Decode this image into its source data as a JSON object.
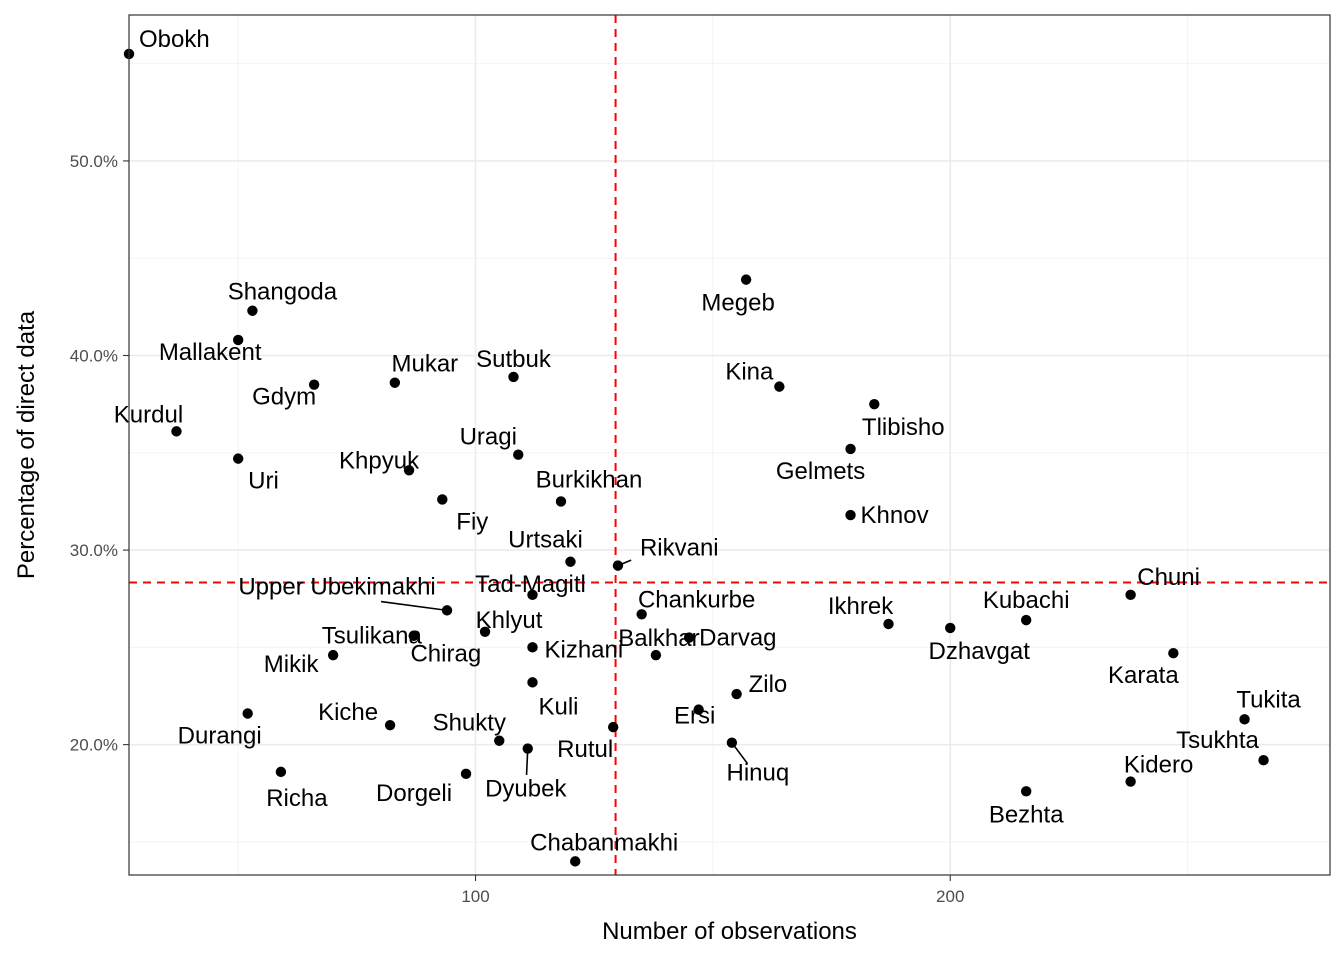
{
  "chart_data": {
    "type": "scatter",
    "xlabel": "Number of observations",
    "ylabel": "Percentage of direct data",
    "xlim": [
      27,
      280
    ],
    "ylim": [
      0.133,
      0.575
    ],
    "x_ticks": [
      100,
      200
    ],
    "y_ticks": [
      0.2,
      0.3,
      0.4,
      0.5
    ],
    "x_tick_labels": [
      "100",
      "200"
    ],
    "y_tick_labels": [
      "20.0%",
      "30.0%",
      "40.0%",
      "50.0%"
    ],
    "grid": true,
    "reference_lines": {
      "x": 129.5,
      "y": 0.2833,
      "color": "#ff0000",
      "style": "dashed"
    },
    "points": [
      {
        "label": "Obokh",
        "x": 27,
        "y": 0.555
      },
      {
        "label": "Shangoda",
        "x": 53,
        "y": 0.423
      },
      {
        "label": "Mallakent",
        "x": 50,
        "y": 0.408
      },
      {
        "label": "Gdym",
        "x": 66,
        "y": 0.385
      },
      {
        "label": "Kurdul",
        "x": 37,
        "y": 0.361
      },
      {
        "label": "Uri",
        "x": 50,
        "y": 0.347
      },
      {
        "label": "Mukar",
        "x": 83,
        "y": 0.386
      },
      {
        "label": "Sutbuk",
        "x": 108,
        "y": 0.389
      },
      {
        "label": "Khpyuk",
        "x": 86,
        "y": 0.341
      },
      {
        "label": "Uragi",
        "x": 109,
        "y": 0.349
      },
      {
        "label": "Fiy",
        "x": 93,
        "y": 0.326
      },
      {
        "label": "Burkikhan",
        "x": 118,
        "y": 0.325
      },
      {
        "label": "Urtsaki",
        "x": 120,
        "y": 0.294
      },
      {
        "label": "Rikvani",
        "x": 130,
        "y": 0.292
      },
      {
        "label": "Upper Ubekimakhi",
        "x": 94,
        "y": 0.269
      },
      {
        "label": "Tad-Magitl",
        "x": 112,
        "y": 0.277
      },
      {
        "label": "Tsulikana",
        "x": 87,
        "y": 0.256
      },
      {
        "label": "Khlyut",
        "x": 102,
        "y": 0.258
      },
      {
        "label": "Chirag",
        "x": 87,
        "y": 0.256
      },
      {
        "label": "Mikik",
        "x": 70,
        "y": 0.246
      },
      {
        "label": "Kizhani",
        "x": 112,
        "y": 0.25
      },
      {
        "label": "Kuli",
        "x": 112,
        "y": 0.232
      },
      {
        "label": "Kiche",
        "x": 82,
        "y": 0.21
      },
      {
        "label": "Durangi",
        "x": 52,
        "y": 0.216
      },
      {
        "label": "Shukty",
        "x": 105,
        "y": 0.202
      },
      {
        "label": "Rutul",
        "x": 129,
        "y": 0.209
      },
      {
        "label": "Richa",
        "x": 59,
        "y": 0.186
      },
      {
        "label": "Dorgeli",
        "x": 98,
        "y": 0.185
      },
      {
        "label": "Dyubek",
        "x": 111,
        "y": 0.198
      },
      {
        "label": "Chabanmakhi",
        "x": 121,
        "y": 0.14
      },
      {
        "label": "Megeb",
        "x": 157,
        "y": 0.439
      },
      {
        "label": "Kina",
        "x": 164,
        "y": 0.384
      },
      {
        "label": "Tlibisho",
        "x": 184,
        "y": 0.375
      },
      {
        "label": "Gelmets",
        "x": 179,
        "y": 0.352
      },
      {
        "label": "Khnov",
        "x": 179,
        "y": 0.318
      },
      {
        "label": "Chankurbe",
        "x": 135,
        "y": 0.267
      },
      {
        "label": "Darvag",
        "x": 145,
        "y": 0.255
      },
      {
        "label": "Balkhar",
        "x": 138,
        "y": 0.246
      },
      {
        "label": "Zilo",
        "x": 155,
        "y": 0.226
      },
      {
        "label": "Ersi",
        "x": 147,
        "y": 0.218
      },
      {
        "label": "Hinuq",
        "x": 154,
        "y": 0.201
      },
      {
        "label": "Ikhrek",
        "x": 187,
        "y": 0.262
      },
      {
        "label": "Dzhavgat",
        "x": 200,
        "y": 0.26
      },
      {
        "label": "Kubachi",
        "x": 216,
        "y": 0.264
      },
      {
        "label": "Chuni",
        "x": 238,
        "y": 0.277
      },
      {
        "label": "Karata",
        "x": 247,
        "y": 0.247
      },
      {
        "label": "Tukita",
        "x": 262,
        "y": 0.213
      },
      {
        "label": "Tsukhta",
        "x": 266,
        "y": 0.192
      },
      {
        "label": "Kidero",
        "x": 238,
        "y": 0.181
      },
      {
        "label": "Bezhta",
        "x": 216,
        "y": 0.176
      }
    ]
  }
}
